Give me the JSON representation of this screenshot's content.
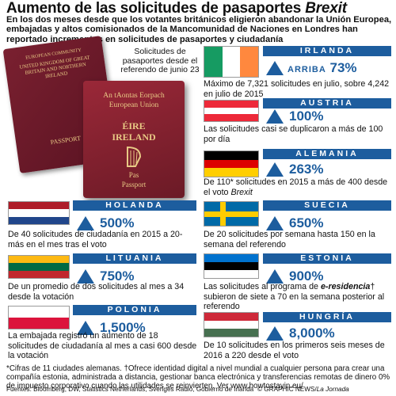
{
  "title": "Aumento de las solicitudes de pasaportes",
  "title_emph": "Brexit",
  "subtitle": "En los dos meses desde que los votantes británicos eligieron abandonar la Unión Europea, embajadas y altos comisionados de la Mancomunidad de Naciones en Londres han reportado incrementos en solicitudes de pasaportes y ciudadanía",
  "passport_caption": "Solicitudes de pasaportes desde el referendo de junio 23",
  "passport_uk": {
    "line1": "EUROPEAN COMMUNITY",
    "line2": "UNITED KINGDOM OF GREAT BRITAIN AND NORTHERN IRELAND",
    "line3": "PASSPORT"
  },
  "passport_ie": {
    "line1": "An tAontas Eorpach",
    "line2": "European Union",
    "line3": "ÉIRE",
    "line4": "IRELAND",
    "line5": "Pas",
    "line6": "Passport"
  },
  "countries": {
    "irlanda": {
      "name": "IRLANDA",
      "prefix": "ARRIBA",
      "pct": "73%",
      "desc": "Máximo de 7,321 solicitudes en julio, sobre 4,242 en julio de 2015"
    },
    "austria": {
      "name": "AUSTRIA",
      "pct": "100%",
      "desc": "Las solicitudes casi se duplicaron a más de 100 por día"
    },
    "alemania": {
      "name": "ALEMANIA",
      "pct": "263%",
      "desc_a": "De 110* solicitudes en 2015 a más de 400 desde el voto",
      "desc_b": "Brexit"
    },
    "holanda": {
      "name": "HOLANDA",
      "pct": "500%",
      "desc": "De 40 solicitudes de ciudadanía en 2015 a 20-más en el mes tras el voto"
    },
    "suecia": {
      "name": "SUECIA",
      "pct": "650%",
      "desc": "De 20 solicitudes por semana hasta 150 en la semana del referendo"
    },
    "lituania": {
      "name": "LITUANIA",
      "pct": "750%",
      "desc": "De un promedio de dos solicitudes al mes a 34 desde la votación"
    },
    "estonia": {
      "name": "ESTONIA",
      "pct": "900%",
      "desc_a": "Las solicitudes al programa de",
      "desc_b": "e-residencia",
      "desc_c": "† subieron de siete a 70 en la semana posterior al referendo"
    },
    "polonia": {
      "name": "POLONIA",
      "pct": "1,500%",
      "desc": "La embajada registró un aumento de 18 solicitudes de ciudadanía al mes a casi 600 desde la votación"
    },
    "hungria": {
      "name": "HUNGRÍA",
      "pct": "8,000%",
      "desc": "De 10 solicitudes en los primeros seis meses de 2016 a 220 desde el voto"
    }
  },
  "footnote": "*Cifras de 11 ciudades alemanas. †Ofrece identidad digital a nivel mundial a cualquier persona para crear una compañía estonia, administrada a distancia, gestionar banca electrónica y transferencias remotas de dinero 0% de impuesto corporativo cuando las utilidades se reinvierten. Ver www.howtostayin.eu/",
  "sources": "Fuentes: Bloomberg, DW, Statistics Netherlands, Sveriges Radio, Gobierno de Irlanda",
  "credit": "© GRAPHIC NEWS/",
  "credit_emph": "La Jornada",
  "colors": {
    "accent": "#1d5d9e",
    "passport": "#7a2030"
  }
}
